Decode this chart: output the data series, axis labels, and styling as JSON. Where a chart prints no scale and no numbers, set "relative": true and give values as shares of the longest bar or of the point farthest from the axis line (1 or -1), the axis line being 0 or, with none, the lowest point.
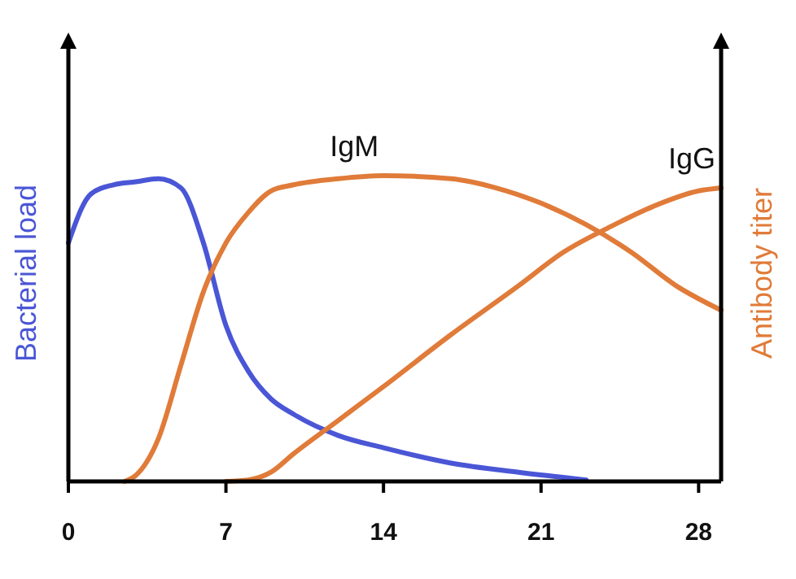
{
  "chart_data": {
    "type": "line",
    "relative": true,
    "ylabel": "Bacterial load",
    "y2label": "Antibody titer",
    "xlim": [
      0,
      29
    ],
    "xticks": [
      0,
      7,
      14,
      21,
      28
    ],
    "grid": false,
    "marker": "none",
    "line_style": "solid",
    "series": [
      {
        "color": "#4a56d6",
        "x": [
          0,
          1,
          2,
          3,
          4,
          5,
          6,
          7,
          8,
          9,
          10,
          12,
          14,
          17,
          20,
          23
        ],
        "values": [
          0.78,
          0.94,
          0.97,
          0.98,
          0.99,
          0.96,
          0.78,
          0.51,
          0.36,
          0.27,
          0.22,
          0.15,
          0.11,
          0.06,
          0.03,
          0.005
        ]
      },
      {
        "name": "IgM",
        "color": "#e07b39",
        "x": [
          2.5,
          3,
          4,
          5,
          6,
          7,
          8,
          9,
          10,
          12,
          14,
          17,
          19,
          21,
          23,
          25,
          27,
          29
        ],
        "values": [
          0,
          0.02,
          0.14,
          0.38,
          0.62,
          0.78,
          0.88,
          0.95,
          0.97,
          0.99,
          1,
          0.99,
          0.96,
          0.91,
          0.84,
          0.75,
          0.64,
          0.56
        ]
      },
      {
        "name": "IgG",
        "color": "#e07b39",
        "x": [
          7,
          8,
          9,
          10,
          12,
          14,
          17,
          20,
          22,
          24,
          26,
          28,
          29
        ],
        "values": [
          0,
          0.005,
          0.03,
          0.09,
          0.2,
          0.31,
          0.48,
          0.64,
          0.75,
          0.83,
          0.9,
          0.95,
          0.96
        ]
      }
    ]
  }
}
